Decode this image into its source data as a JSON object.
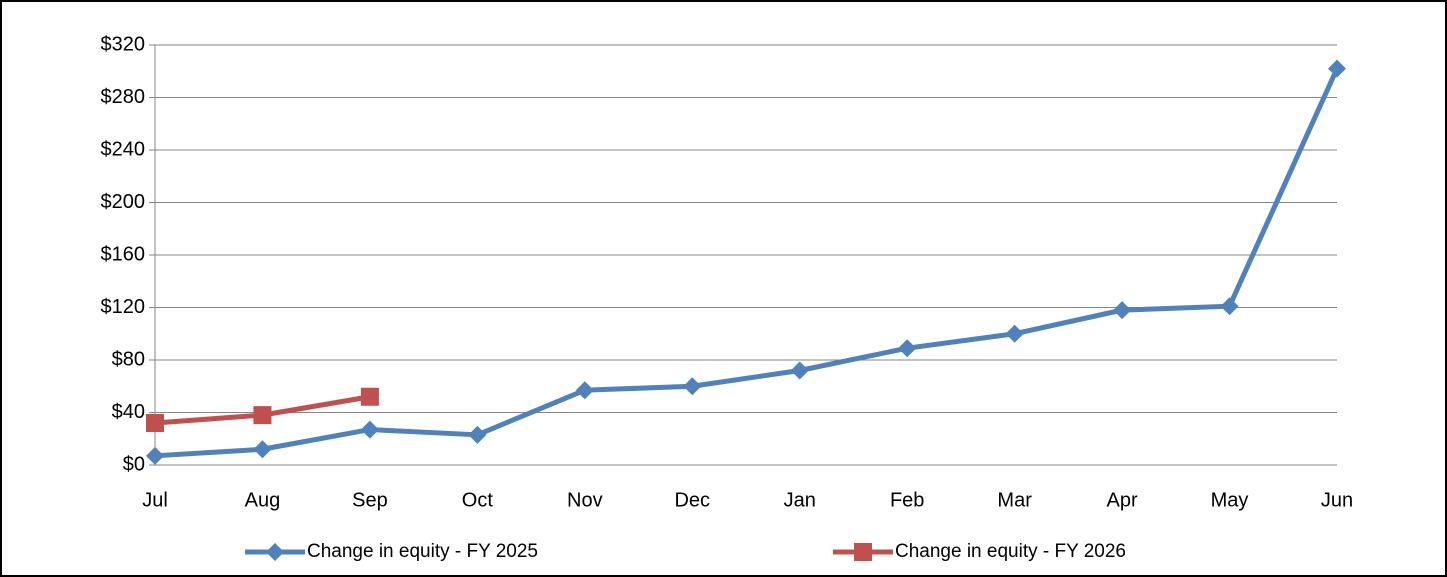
{
  "chart_data": {
    "type": "line",
    "categories": [
      "Jul",
      "Aug",
      "Sep",
      "Oct",
      "Nov",
      "Dec",
      "Jan",
      "Feb",
      "Mar",
      "Apr",
      "May",
      "Jun"
    ],
    "series": [
      {
        "name": "Change in equity - FY 2025",
        "color": "#4f81bd",
        "marker": "diamond",
        "values": [
          7,
          12,
          27,
          23,
          57,
          60,
          72,
          89,
          100,
          118,
          121,
          302
        ]
      },
      {
        "name": "Change in equity - FY 2026",
        "color": "#c0504d",
        "marker": "square",
        "values": [
          32,
          38,
          52,
          null,
          null,
          null,
          null,
          null,
          null,
          null,
          null,
          null
        ]
      }
    ],
    "ylim": [
      0,
      320
    ],
    "yticks": [
      {
        "value": 0,
        "label": "$0"
      },
      {
        "value": 40,
        "label": "$40"
      },
      {
        "value": 80,
        "label": "$80"
      },
      {
        "value": 120,
        "label": "$120"
      },
      {
        "value": 160,
        "label": "$160"
      },
      {
        "value": 200,
        "label": "$200"
      },
      {
        "value": 240,
        "label": "$240"
      },
      {
        "value": 280,
        "label": "$280"
      },
      {
        "value": 320,
        "label": "$320"
      }
    ],
    "grid": true,
    "legend": "bottom"
  }
}
